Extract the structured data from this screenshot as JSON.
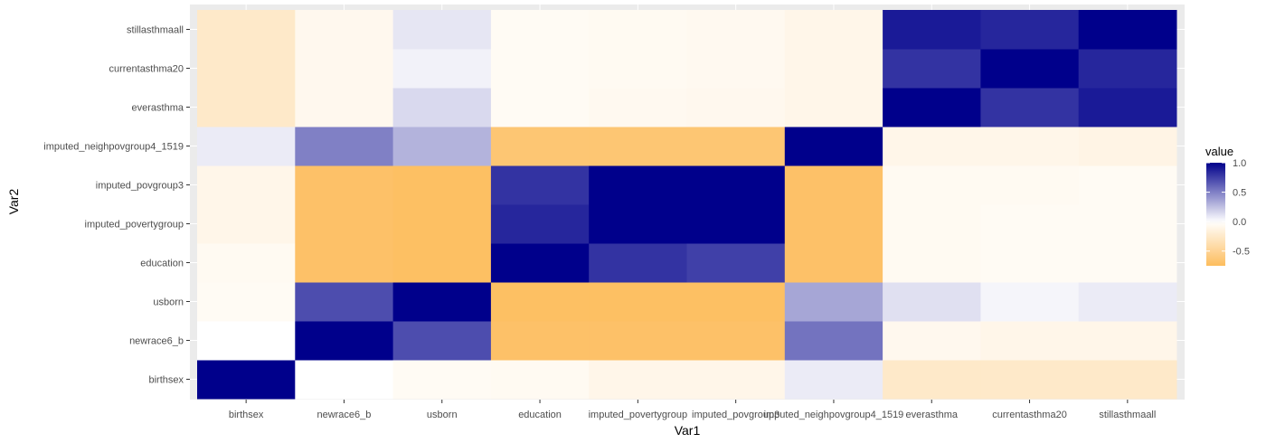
{
  "chart_data": {
    "type": "heatmap",
    "xlabel": "Var1",
    "ylabel": "Var2",
    "x": [
      "birthsex",
      "newrace6_b",
      "usborn",
      "education",
      "imputed_povertygroup",
      "imputed_povgroup3",
      "imputed_neighpovgroup4_1519",
      "everasthma",
      "currentasthma20",
      "stillasthmaall"
    ],
    "y": [
      "birthsex",
      "newrace6_b",
      "usborn",
      "education",
      "imputed_povertygroup",
      "imputed_povgroup3",
      "imputed_neighpovgroup4_1519",
      "everasthma",
      "currentasthma20",
      "stillasthmaall"
    ],
    "values": [
      [
        1.0,
        0.0,
        -0.05,
        -0.06,
        -0.1,
        -0.1,
        0.08,
        -0.25,
        -0.25,
        -0.25
      ],
      [
        0.0,
        1.0,
        0.7,
        -0.7,
        -0.7,
        -0.7,
        0.55,
        -0.08,
        -0.1,
        -0.1
      ],
      [
        -0.05,
        0.7,
        1.0,
        -0.72,
        -0.72,
        -0.72,
        0.35,
        0.12,
        0.04,
        0.08
      ],
      [
        -0.06,
        -0.7,
        -0.72,
        1.0,
        0.8,
        0.75,
        -0.7,
        -0.06,
        -0.05,
        -0.05
      ],
      [
        -0.1,
        -0.7,
        -0.72,
        0.85,
        1.0,
        1.0,
        -0.7,
        -0.06,
        -0.05,
        -0.05
      ],
      [
        -0.1,
        -0.7,
        -0.72,
        0.8,
        1.0,
        1.0,
        -0.7,
        -0.06,
        -0.06,
        -0.05
      ],
      [
        0.08,
        0.5,
        0.3,
        -0.65,
        -0.65,
        -0.65,
        1.0,
        -0.1,
        -0.1,
        -0.12
      ],
      [
        -0.25,
        -0.08,
        0.15,
        -0.05,
        -0.07,
        -0.08,
        -0.1,
        1.0,
        0.8,
        0.9
      ],
      [
        -0.25,
        -0.08,
        0.05,
        -0.05,
        -0.06,
        -0.07,
        -0.1,
        0.8,
        1.0,
        0.85
      ],
      [
        -0.25,
        -0.08,
        0.1,
        -0.05,
        -0.06,
        -0.07,
        -0.1,
        0.9,
        0.85,
        1.0
      ]
    ],
    "value_range": [
      -0.75,
      1.0
    ],
    "colors": {
      "low": "#FDBD5D",
      "mid": "#FFFFFF",
      "high": "#00008B",
      "panel": "#EBEBEB",
      "grid": "#FFFFFF"
    },
    "legend": {
      "title": "value",
      "position": "right",
      "ticks": [
        1.0,
        0.5,
        0.0,
        -0.5
      ],
      "tick_labels": [
        "1.0",
        "0.5",
        "0.0",
        "-0.5"
      ]
    },
    "grid": true
  }
}
